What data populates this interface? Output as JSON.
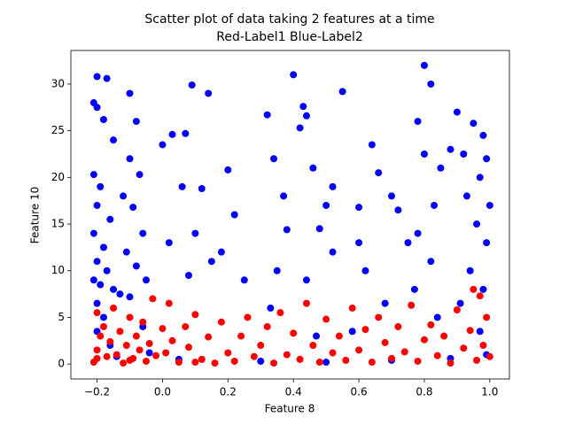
{
  "chart_data": {
    "type": "scatter",
    "title": "Scatter plot of data taking 2 features at a time",
    "subtitle": "Red-Label1 Blue-Label2",
    "x_label": "Feature 8",
    "y_label": "Feature 10",
    "xlim": [
      -0.28,
      1.06
    ],
    "ylim": [
      -1.6,
      33.6
    ],
    "xticks": [
      {
        "value": -0.2,
        "label": "−0.2"
      },
      {
        "value": 0,
        "label": "0.0"
      },
      0.2,
      0.4,
      0.6,
      0.8,
      {
        "value": 1,
        "label": "1.0"
      }
    ],
    "yticks": [
      0,
      5,
      10,
      15,
      20,
      25,
      30
    ],
    "series": [
      {
        "color": "#0000ff",
        "x": [
          -0.2,
          -0.17,
          -0.21,
          -0.2,
          -0.18,
          -0.15,
          -0.21,
          -0.19,
          -0.2,
          -0.16,
          -0.21,
          -0.18,
          -0.2,
          -0.17,
          -0.21,
          -0.19,
          -0.15,
          -0.13,
          -0.2,
          -0.18,
          -0.2,
          -0.16,
          -0.1,
          -0.08,
          -0.1,
          -0.07,
          -0.12,
          -0.09,
          -0.06,
          -0.11,
          -0.08,
          -0.05,
          -0.1,
          -0.06,
          0.0,
          0.03,
          0.07,
          0.09,
          0.14,
          0.06,
          0.12,
          0.2,
          0.02,
          0.1,
          0.18,
          0.25,
          0.08,
          0.15,
          0.22,
          0.32,
          0.34,
          0.4,
          0.42,
          0.44,
          0.43,
          0.55,
          0.37,
          0.46,
          0.5,
          0.52,
          0.48,
          0.38,
          0.35,
          0.44,
          0.33,
          0.47,
          0.52,
          0.6,
          0.64,
          0.66,
          0.6,
          0.62,
          0.68,
          0.58,
          0.7,
          0.72,
          0.75,
          0.8,
          0.82,
          0.78,
          0.8,
          0.85,
          0.83,
          0.78,
          0.82,
          0.77,
          0.84,
          0.9,
          0.88,
          0.92,
          0.95,
          0.98,
          0.97,
          0.93,
          0.96,
          0.99,
          0.94,
          0.98,
          0.91,
          0.97,
          1.0,
          0.99,
          0.99,
          -0.14,
          0.05,
          0.3,
          0.5,
          0.7,
          0.88,
          -0.04
        ],
        "values": [
          30.8,
          30.6,
          28,
          27.5,
          26.2,
          24,
          20.3,
          19,
          17,
          15.5,
          14,
          12.5,
          11,
          10,
          9,
          8.5,
          8,
          7.5,
          6.5,
          5,
          3.5,
          2,
          29,
          26,
          22,
          20.3,
          18,
          16.8,
          14,
          12,
          10.5,
          9,
          7.2,
          4,
          23.5,
          24.6,
          24.7,
          29.9,
          29,
          19,
          18.8,
          20.8,
          13,
          14,
          12,
          9,
          9.5,
          11,
          16,
          26.7,
          22,
          31,
          25.3,
          26.6,
          27.6,
          29.2,
          18,
          21,
          17,
          19,
          14.5,
          14.4,
          10,
          9,
          6,
          3,
          12,
          13,
          23.5,
          20.5,
          16.8,
          10,
          6.5,
          3.5,
          18,
          16.5,
          13,
          32,
          30,
          26,
          22.5,
          21,
          17,
          14,
          11,
          8,
          5,
          27,
          23,
          22.5,
          25.8,
          24.5,
          20,
          18,
          15,
          13,
          10,
          8,
          6.5,
          3.5,
          17,
          22,
          1,
          0.8,
          0.5,
          0.3,
          0.2,
          0.4,
          0.6,
          1.2
        ]
      },
      {
        "color": "#ff0000",
        "x": [
          -0.21,
          -0.2,
          -0.19,
          -0.2,
          -0.18,
          -0.17,
          -0.16,
          -0.15,
          -0.14,
          -0.13,
          -0.12,
          -0.11,
          -0.1,
          -0.09,
          -0.08,
          -0.07,
          -0.06,
          -0.05,
          -0.04,
          -0.03,
          -0.02,
          0.0,
          0.01,
          0.02,
          0.03,
          0.05,
          0.07,
          0.08,
          0.1,
          0.12,
          0.14,
          0.16,
          0.18,
          0.2,
          0.22,
          0.24,
          0.26,
          0.28,
          0.3,
          0.32,
          0.34,
          0.36,
          0.38,
          0.4,
          0.42,
          0.44,
          0.46,
          0.48,
          0.5,
          0.52,
          0.54,
          0.56,
          0.58,
          0.6,
          0.62,
          0.64,
          0.66,
          0.68,
          0.7,
          0.72,
          0.74,
          0.76,
          0.78,
          0.8,
          0.82,
          0.84,
          0.86,
          0.88,
          0.9,
          0.92,
          0.94,
          0.96,
          0.97,
          0.98,
          0.99,
          1.0,
          0.95,
          -0.2,
          -0.1,
          0.1
        ],
        "values": [
          0.2,
          1.5,
          3,
          5.5,
          4,
          0.8,
          2.4,
          6,
          1,
          3.5,
          0.1,
          2,
          5,
          0.6,
          3,
          1.5,
          4.5,
          0.3,
          2.2,
          7,
          0.9,
          3.8,
          1.2,
          6.5,
          2.5,
          0.2,
          4,
          1.8,
          5.3,
          0.5,
          2.9,
          0.1,
          4.5,
          1.2,
          0.3,
          3,
          5,
          0.8,
          2,
          4,
          0.1,
          5.5,
          1,
          3.3,
          0.5,
          6.5,
          2,
          0.2,
          4.8,
          1.2,
          3,
          0.4,
          6,
          1.5,
          3.7,
          0.2,
          5,
          2.3,
          0.6,
          4,
          1.3,
          6.3,
          0.3,
          2.6,
          4.2,
          0.9,
          3,
          0.1,
          5.8,
          1.7,
          3.6,
          0.4,
          7.3,
          2,
          5,
          0.8,
          8,
          0.6,
          0.4,
          0.2
        ]
      }
    ]
  }
}
